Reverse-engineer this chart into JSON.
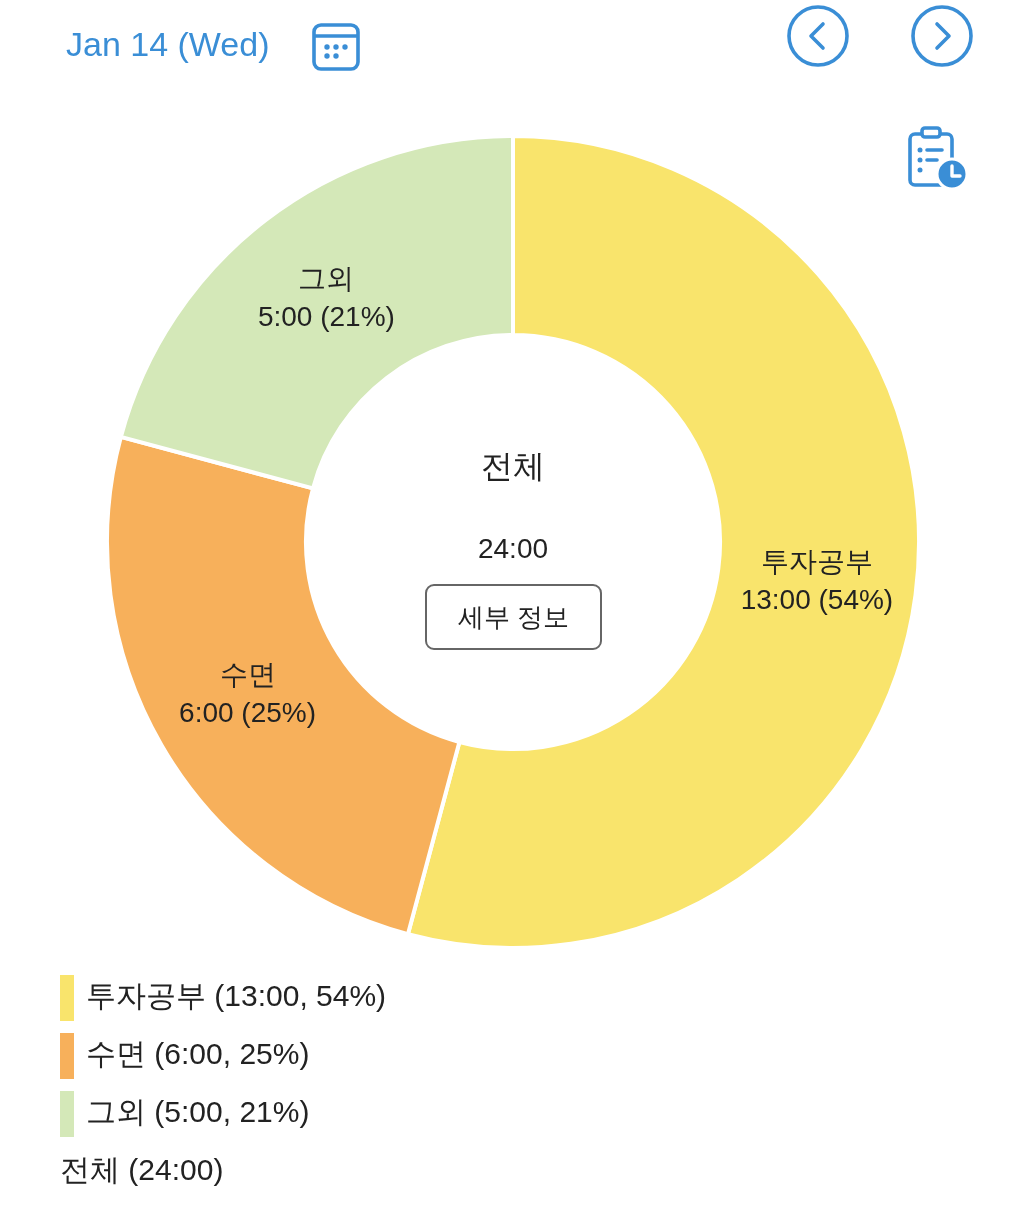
{
  "chart_data": {
    "type": "donut",
    "title": "Jan 14 (Wed)",
    "categories": [
      "투자공부",
      "수면",
      "그외"
    ],
    "values": [
      13,
      6,
      5
    ],
    "colors": [
      "#f9e46c",
      "#f7b05b",
      "#d4e8b8"
    ],
    "value_labels": [
      "13:00 (54%)",
      "6:00 (25%)",
      "5:00 (21%)"
    ],
    "annotations": [
      "전체",
      "24:00",
      "세부 정보",
      "(13:00, 54%)",
      "(6:00, 25%)",
      "(5:00, 21%)",
      "전체 (24:00)"
    ],
    "legend": "bottom left"
  }
}
